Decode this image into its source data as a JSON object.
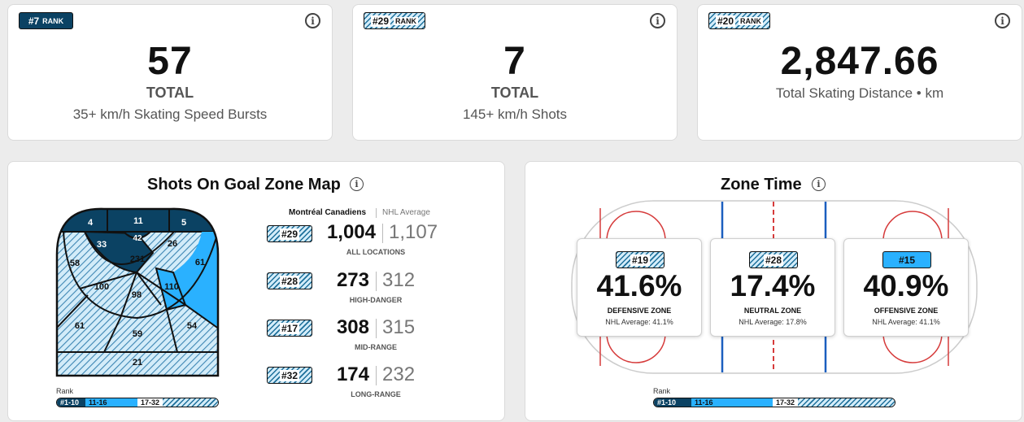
{
  "colors": {
    "dark": "#0b4263",
    "light": "#2ab1ff",
    "hatch": "#d3ecf9"
  },
  "top_cards": [
    {
      "rank": "#7",
      "rank_word": "RANK",
      "value": "57",
      "label": "TOTAL",
      "description": "35+ km/h Skating Speed Bursts"
    },
    {
      "rank": "#29",
      "rank_word": "RANK",
      "value": "7",
      "label": "TOTAL",
      "description": "145+ km/h Shots"
    },
    {
      "rank": "#20",
      "rank_word": "RANK",
      "value": "2,847.66",
      "label": "",
      "description": "Total Skating Distance • km"
    }
  ],
  "info_icon": "info-icon",
  "shots_panel": {
    "title": "Shots On Goal Zone Map",
    "col_team": "Montréal Canadiens",
    "col_avg": "NHL Average",
    "zones": [
      "4",
      "11",
      "5",
      "33",
      "42",
      "26",
      "231",
      "58",
      "61",
      "100",
      "98",
      "110",
      "61",
      "59",
      "54",
      "21"
    ],
    "rows": [
      {
        "rank": "#29",
        "value": "1,004",
        "avg": "1,107",
        "label": "ALL LOCATIONS"
      },
      {
        "rank": "#28",
        "value": "273",
        "avg": "312",
        "label": "HIGH-DANGER"
      },
      {
        "rank": "#17",
        "value": "308",
        "avg": "315",
        "label": "MID-RANGE"
      },
      {
        "rank": "#32",
        "value": "174",
        "avg": "232",
        "label": "LONG-RANGE"
      }
    ],
    "legend_title": "Rank",
    "legend": [
      "#1-10",
      "11-16",
      "17-32"
    ]
  },
  "zone_panel": {
    "title": "Zone Time",
    "zones": [
      {
        "rank": "#19",
        "pct": "41.6%",
        "label": "DEFENSIVE ZONE",
        "avg": "NHL Average: 41.1%"
      },
      {
        "rank": "#28",
        "pct": "17.4%",
        "label": "NEUTRAL ZONE",
        "avg": "NHL Average: 17.8%"
      },
      {
        "rank": "#15",
        "pct": "40.9%",
        "label": "OFFENSIVE ZONE",
        "avg": "NHL Average: 41.1%"
      }
    ],
    "legend_title": "Rank",
    "legend": [
      "#1-10",
      "11-16",
      "17-32"
    ]
  }
}
